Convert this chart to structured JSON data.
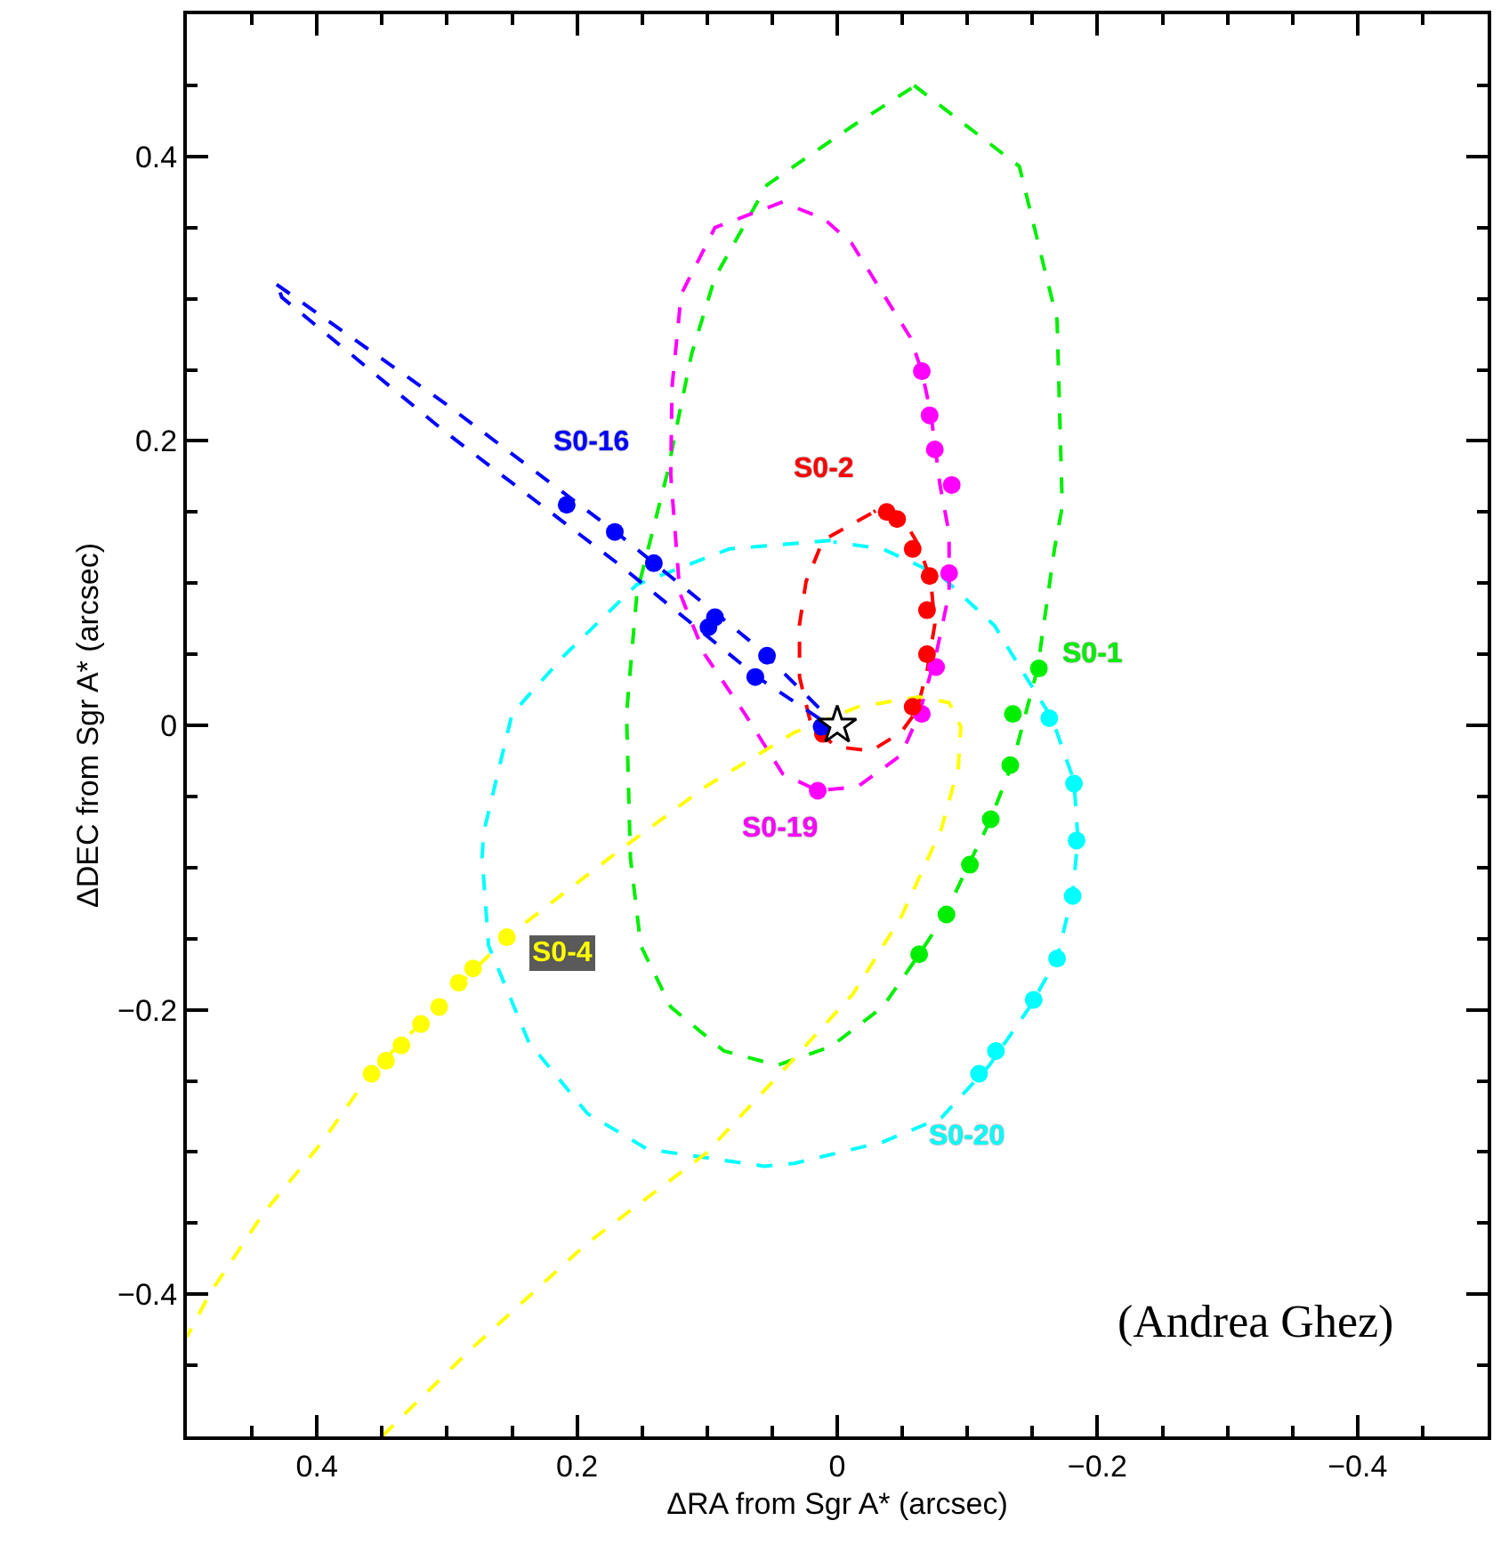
{
  "chart_data": {
    "type": "line",
    "xlabel": "ΔRA from Sgr A* (arcsec)",
    "ylabel": "ΔDEC from Sgr A* (arcsec)",
    "xlim": [
      0.5,
      -0.5
    ],
    "ylim": [
      -0.5,
      0.5
    ],
    "xticks": [
      {
        "value": 0.45,
        "label": null
      },
      0.4,
      {
        "value": 0.35,
        "label": null
      },
      {
        "value": 0.3,
        "label": null
      },
      {
        "value": 0.25,
        "label": null
      },
      0.2,
      {
        "value": 0.15,
        "label": null
      },
      {
        "value": 0.1,
        "label": null
      },
      {
        "value": 0.05,
        "label": null
      },
      0,
      {
        "value": -0.05,
        "label": null
      },
      {
        "value": -0.1,
        "label": null
      },
      {
        "value": -0.15,
        "label": null
      },
      {
        "value": -0.2,
        "label": "−0.2"
      },
      {
        "value": -0.25,
        "label": null
      },
      {
        "value": -0.3,
        "label": null
      },
      {
        "value": -0.35,
        "label": null
      },
      {
        "value": -0.4,
        "label": "−0.4"
      },
      {
        "value": -0.45,
        "label": null
      }
    ],
    "yticks": [
      {
        "value": -0.45,
        "label": null
      },
      {
        "value": -0.4,
        "label": "−0.4"
      },
      {
        "value": -0.35,
        "label": null
      },
      {
        "value": -0.3,
        "label": null
      },
      {
        "value": -0.25,
        "label": null
      },
      {
        "value": -0.2,
        "label": "−0.2"
      },
      {
        "value": -0.15,
        "label": null
      },
      {
        "value": -0.1,
        "label": null
      },
      {
        "value": -0.05,
        "label": null
      },
      0,
      {
        "value": 0.05,
        "label": null
      },
      {
        "value": 0.1,
        "label": null
      },
      {
        "value": 0.15,
        "label": null
      },
      0.2,
      {
        "value": 0.25,
        "label": null
      },
      {
        "value": 0.3,
        "label": null
      },
      {
        "value": 0.35,
        "label": null
      },
      0.4,
      {
        "value": 0.45,
        "label": null
      }
    ],
    "grid": false,
    "legend": false,
    "series": [
      {
        "line_style": "dashed",
        "marker": "none",
        "color": "#00ee00",
        "x": [
          -0.059,
          -0.14,
          -0.169,
          -0.173,
          -0.167,
          -0.154,
          -0.135,
          -0.117,
          -0.101,
          -0.083,
          -0.063,
          -0.035,
          0.005,
          0.046,
          0.087,
          0.128,
          0.151,
          0.159,
          0.162,
          0.154,
          0.131,
          0.112,
          0.094,
          0.054,
          -0.011,
          -0.057
        ],
        "values": [
          0.45,
          0.393,
          0.285,
          0.154,
          0.124,
          0.04,
          -0.026,
          -0.068,
          -0.098,
          -0.133,
          -0.161,
          -0.198,
          -0.226,
          -0.239,
          -0.229,
          -0.198,
          -0.155,
          -0.093,
          0.008,
          0.093,
          0.176,
          0.261,
          0.315,
          0.38,
          0.421,
          0.448
        ]
      },
      {
        "line_style": "dashed",
        "marker": "none",
        "color": "#00ffff",
        "x": [
          0.005,
          0.083,
          0.154,
          0.21,
          0.25,
          0.272,
          0.273,
          0.268,
          0.237,
          0.192,
          0.146,
          0.056,
          0.033,
          -0.035,
          -0.08,
          -0.117,
          -0.148,
          -0.169,
          -0.181,
          -0.185,
          -0.182,
          -0.165,
          -0.141,
          -0.121,
          -0.08,
          -0.035,
          0.003
        ],
        "values": [
          0.13,
          0.124,
          0.099,
          0.049,
          0.008,
          -0.076,
          -0.093,
          -0.155,
          -0.223,
          -0.273,
          -0.298,
          -0.31,
          -0.308,
          -0.293,
          -0.276,
          -0.239,
          -0.198,
          -0.164,
          -0.118,
          -0.08,
          -0.039,
          0.005,
          0.04,
          0.07,
          0.105,
          0.124,
          0.129
        ]
      },
      {
        "line_style": "dashed",
        "marker": "none",
        "color": "#ff00ff",
        "x": [
          0.042,
          0.094,
          0.12,
          0.127,
          0.128,
          0.121,
          0.102,
          0.071,
          0.042,
          0.015,
          -0.016,
          -0.049,
          -0.063,
          -0.076,
          -0.086,
          -0.086,
          -0.079,
          -0.072,
          -0.065,
          -0.056,
          -0.011,
          0.01,
          0.04
        ],
        "values": [
          0.368,
          0.35,
          0.303,
          0.238,
          0.176,
          0.093,
          0.05,
          0.008,
          -0.034,
          -0.046,
          -0.043,
          -0.021,
          0.008,
          0.05,
          0.093,
          0.135,
          0.169,
          0.219,
          0.249,
          0.273,
          0.339,
          0.356,
          0.367
        ]
      },
      {
        "line_style": "dashed",
        "marker": "none",
        "color": "#ff0000",
        "x": [
          -0.026,
          0.011,
          0.024,
          0.029,
          0.029,
          0.02,
          0.001,
          -0.026,
          -0.049,
          -0.061,
          -0.069,
          -0.075,
          -0.072,
          -0.063,
          -0.049,
          -0.035,
          -0.028
        ],
        "values": [
          0.149,
          0.13,
          0.101,
          0.071,
          0.034,
          0.0,
          -0.015,
          -0.018,
          -0.005,
          0.01,
          0.038,
          0.071,
          0.101,
          0.126,
          0.148,
          0.154,
          0.15
        ]
      },
      {
        "line_style": "dashed",
        "marker": "none",
        "color": "#0000ff",
        "x": [
          0.431,
          0.301,
          0.169,
          0.06,
          0.016,
          -0.001,
          0.011,
          0.06,
          0.169,
          0.301,
          0.427,
          0.429
        ],
        "values": [
          0.31,
          0.226,
          0.135,
          0.054,
          0.014,
          -0.001,
          0.003,
          0.033,
          0.114,
          0.206,
          0.301,
          0.306
        ]
      },
      {
        "line_style": "dashed",
        "marker": "none",
        "color": "#ffff00",
        "x": [
          0.35,
          0.282,
          0.192,
          0.101,
          0.042,
          -0.012,
          -0.049,
          -0.08,
          -0.093,
          -0.095,
          -0.086,
          -0.063,
          -0.016,
          0.033,
          0.101,
          0.169,
          0.254,
          0.359,
          0.396,
          0.441,
          0.482,
          0.5
        ],
        "values": [
          -0.5,
          -0.439,
          -0.364,
          -0.301,
          -0.243,
          -0.189,
          -0.135,
          -0.073,
          -0.03,
          -0.001,
          0.016,
          0.02,
          0.013,
          -0.005,
          -0.043,
          -0.089,
          -0.149,
          -0.245,
          -0.293,
          -0.343,
          -0.399,
          -0.43
        ]
      },
      {
        "type": "scatter",
        "name": "S0-1",
        "marker": "circle",
        "color": "#00ee00",
        "x": [
          -0.155,
          -0.135,
          -0.133,
          -0.118,
          -0.102,
          -0.084,
          -0.063
        ],
        "values": [
          0.04,
          0.008,
          -0.028,
          -0.066,
          -0.098,
          -0.133,
          -0.161
        ]
      },
      {
        "type": "scatter",
        "name": "S0-20",
        "marker": "circle",
        "color": "#00ffff",
        "x": [
          -0.163,
          -0.182,
          -0.184,
          -0.181,
          -0.169,
          -0.151,
          -0.122,
          -0.109
        ],
        "values": [
          0.005,
          -0.041,
          -0.081,
          -0.12,
          -0.164,
          -0.193,
          -0.229,
          -0.245
        ]
      },
      {
        "type": "scatter",
        "name": "S0-19",
        "marker": "circle",
        "color": "#ff00ff",
        "x": [
          -0.065,
          -0.071,
          -0.075,
          -0.088,
          -0.086,
          -0.076,
          -0.065,
          0.015
        ],
        "values": [
          0.249,
          0.218,
          0.194,
          0.169,
          0.107,
          0.041,
          0.008,
          -0.046
        ]
      },
      {
        "type": "scatter",
        "name": "S0-2",
        "marker": "circle",
        "color": "#ff0000",
        "x": [
          -0.038,
          -0.046,
          -0.058,
          -0.071,
          -0.069,
          -0.069,
          -0.058,
          0.011
        ],
        "values": [
          0.15,
          0.145,
          0.124,
          0.105,
          0.081,
          0.05,
          0.013,
          -0.006
        ]
      },
      {
        "type": "scatter",
        "name": "S0-16",
        "marker": "circle",
        "color": "#0000ff",
        "x": [
          0.208,
          0.171,
          0.141,
          0.094,
          0.099,
          0.054,
          0.063,
          0.012
        ],
        "values": [
          0.155,
          0.136,
          0.114,
          0.076,
          0.069,
          0.049,
          0.034,
          -0.001
        ]
      },
      {
        "type": "scatter",
        "name": "S0-4",
        "marker": "circle",
        "color": "#ffff00",
        "x": [
          0.254,
          0.28,
          0.291,
          0.306,
          0.32,
          0.335,
          0.347,
          0.358
        ],
        "values": [
          -0.149,
          -0.171,
          -0.181,
          -0.198,
          -0.21,
          -0.225,
          -0.236,
          -0.245
        ]
      },
      {
        "type": "scatter",
        "marker": "star",
        "color": "#000000",
        "x": [
          0
        ],
        "values": [
          0
        ]
      }
    ],
    "annotations": [
      "(Andrea Ghez)"
    ]
  }
}
